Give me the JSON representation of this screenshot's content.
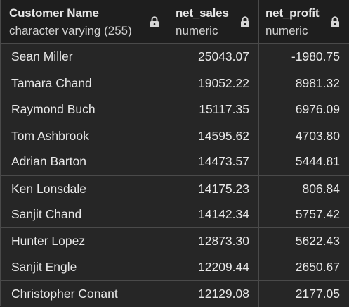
{
  "columns": [
    {
      "name": "Customer Name",
      "type": "character varying (255)",
      "lock_icon": "lock-icon"
    },
    {
      "name": "net_sales",
      "type": "numeric",
      "lock_icon": "lock-icon"
    },
    {
      "name": "net_profit",
      "type": "numeric",
      "lock_icon": "lock-icon"
    }
  ],
  "rows": [
    {
      "customer_name": "Sean Miller",
      "net_sales": "25043.07",
      "net_profit": "-1980.75"
    },
    {
      "customer_name": "Tamara Chand",
      "net_sales": "19052.22",
      "net_profit": "8981.32"
    },
    {
      "customer_name": "Raymond Buch",
      "net_sales": "15117.35",
      "net_profit": "6976.09"
    },
    {
      "customer_name": "Tom Ashbrook",
      "net_sales": "14595.62",
      "net_profit": "4703.80"
    },
    {
      "customer_name": "Adrian Barton",
      "net_sales": "14473.57",
      "net_profit": "5444.81"
    },
    {
      "customer_name": "Ken Lonsdale",
      "net_sales": "14175.23",
      "net_profit": "806.84"
    },
    {
      "customer_name": "Sanjit Chand",
      "net_sales": "14142.34",
      "net_profit": "5757.42"
    },
    {
      "customer_name": "Hunter Lopez",
      "net_sales": "12873.30",
      "net_profit": "5622.43"
    },
    {
      "customer_name": "Sanjit Engle",
      "net_sales": "12209.44",
      "net_profit": "2650.67"
    },
    {
      "customer_name": "Christopher Conant",
      "net_sales": "12129.08",
      "net_profit": "2177.05"
    }
  ],
  "colors": {
    "background": "#262626",
    "header_background": "#1e1e1e",
    "grid_line": "#4a4a4a",
    "text": "#e8e8e8"
  }
}
